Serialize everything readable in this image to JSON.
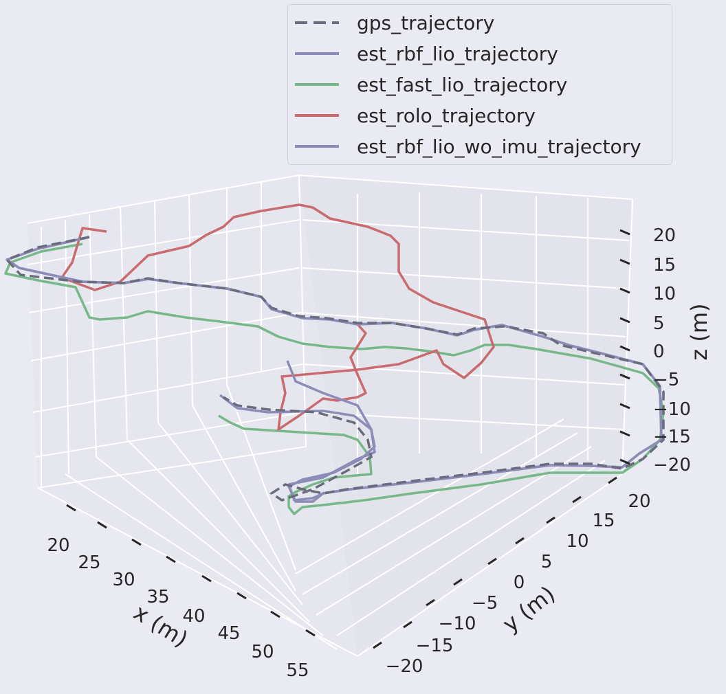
{
  "chart_data": {
    "type": "line",
    "dimensions": "3d",
    "xlabel": "x (m)",
    "ylabel": "y (m)",
    "zlabel": "z (m)",
    "x_ticks": [
      "20",
      "25",
      "30",
      "35",
      "40",
      "45",
      "50",
      "55"
    ],
    "y_ticks": [
      "−20",
      "−15",
      "−10",
      "−5",
      "0",
      "5",
      "10",
      "15",
      "20"
    ],
    "z_ticks": [
      "−20",
      "−15",
      "−10",
      "−5",
      "0",
      "5",
      "10",
      "15",
      "20"
    ],
    "grid": true,
    "legend_position": "top-right",
    "series": [
      {
        "name": "gps_trajectory",
        "color": "#6b6b7e",
        "dashed": true
      },
      {
        "name": "est_rbf_lio_trajectory",
        "color": "#8c8cb8",
        "dashed": false
      },
      {
        "name": "est_fast_lio_trajectory",
        "color": "#76b887",
        "dashed": false
      },
      {
        "name": "est_rolo_trajectory",
        "color": "#c96b6e",
        "dashed": false
      },
      {
        "name": "est_rbf_lio_wo_imu_trajectory",
        "color": "#8c8cb8",
        "dashed": false
      }
    ]
  }
}
